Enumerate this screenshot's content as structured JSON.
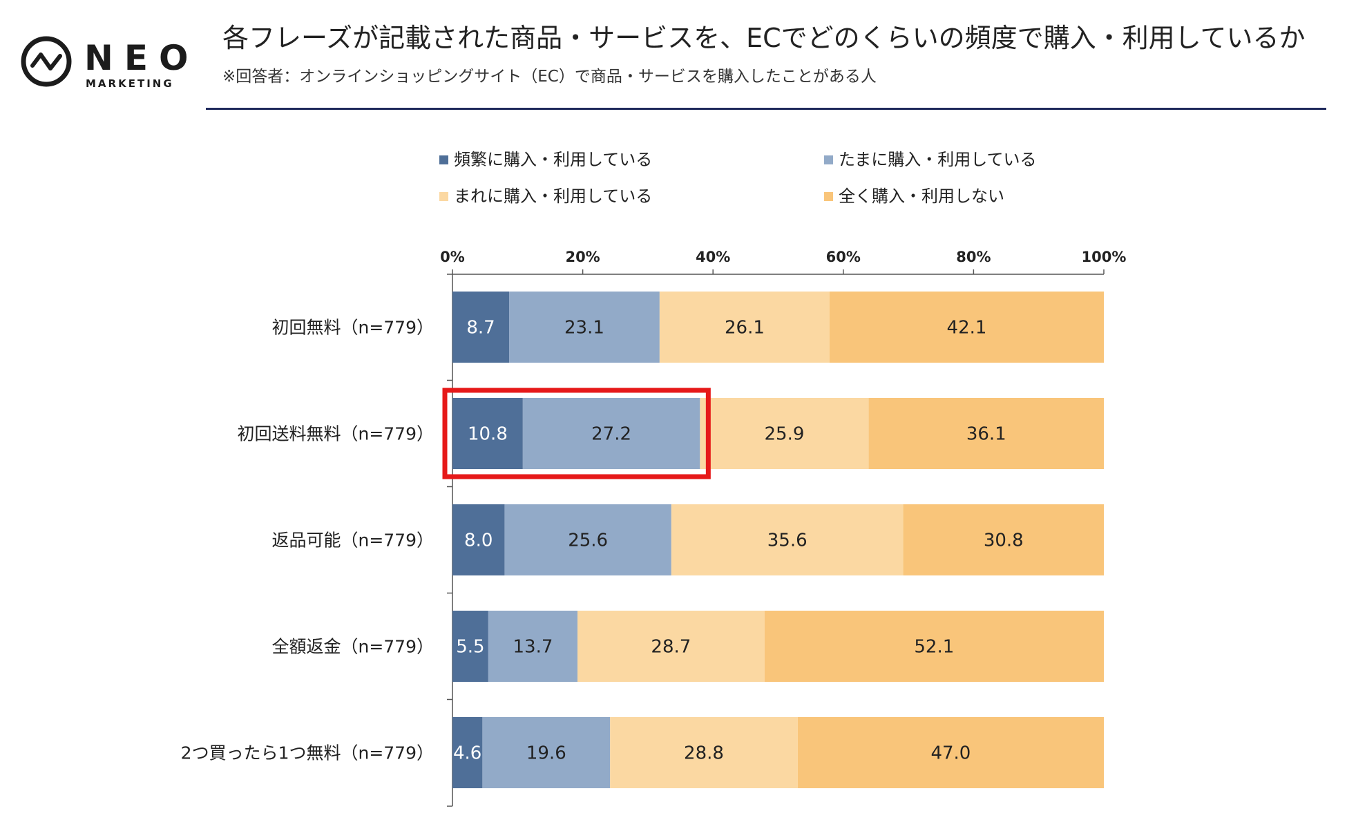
{
  "brand": {
    "name": "NEO",
    "sub": "MARKETING"
  },
  "header": {
    "title": "各フレーズが記載された商品・サービスを、ECでどのくらいの頻度で購入・利用しているか",
    "subtitle": "※回答者：オンラインショッピングサイト（EC）で商品・サービスを購入したことがある人"
  },
  "colors": {
    "frequent": "#4f6f98",
    "sometimes": "#92aac8",
    "rarely": "#fbd8a2",
    "never": "#f9c57a",
    "highlight": "#e61919",
    "header_rule": "#1f2a5c"
  },
  "legend": [
    {
      "label": "頻繁に購入・利用している",
      "color": "#4f6f98"
    },
    {
      "label": "たまに購入・利用している",
      "color": "#92aac8"
    },
    {
      "label": "まれに購入・利用している",
      "color": "#fbd8a2"
    },
    {
      "label": "全く購入・利用しない",
      "color": "#f9c57a"
    }
  ],
  "chart_data": {
    "type": "bar",
    "orientation": "horizontal",
    "stacked": true,
    "xlim": [
      0,
      100
    ],
    "xticks": [
      "0%",
      "20%",
      "40%",
      "60%",
      "80%",
      "100%"
    ],
    "categories": [
      "初回無料（n=779）",
      "初回送料無料（n=779）",
      "返品可能（n=779）",
      "全額返金（n=779）",
      "2つ買ったら1つ無料（n=779）"
    ],
    "series": [
      {
        "name": "頻繁に購入・利用している",
        "values": [
          8.7,
          10.8,
          8.0,
          5.5,
          4.6
        ],
        "labels": [
          "8.7",
          "10.8",
          "8.0",
          "5.5",
          "4.6"
        ],
        "color": "#4f6f98",
        "text_color": "#ffffff"
      },
      {
        "name": "たまに購入・利用している",
        "values": [
          23.1,
          27.2,
          25.6,
          13.7,
          19.6
        ],
        "labels": [
          "23.1",
          "27.2",
          "25.6",
          "13.7",
          "19.6"
        ],
        "color": "#92aac8",
        "text_color": "#222222"
      },
      {
        "name": "まれに購入・利用している",
        "values": [
          26.1,
          25.9,
          35.6,
          28.7,
          28.8
        ],
        "labels": [
          "26.1",
          "25.9",
          "35.6",
          "28.7",
          "28.8"
        ],
        "color": "#fbd8a2",
        "text_color": "#222222"
      },
      {
        "name": "全く購入・利用しない",
        "values": [
          42.1,
          36.1,
          30.8,
          52.1,
          47.0
        ],
        "labels": [
          "42.1",
          "36.1",
          "30.8",
          "52.1",
          "47.0"
        ],
        "color": "#f9c57a",
        "text_color": "#222222"
      }
    ],
    "highlight": {
      "category_index": 1,
      "series_indices": [
        0,
        1
      ]
    }
  }
}
